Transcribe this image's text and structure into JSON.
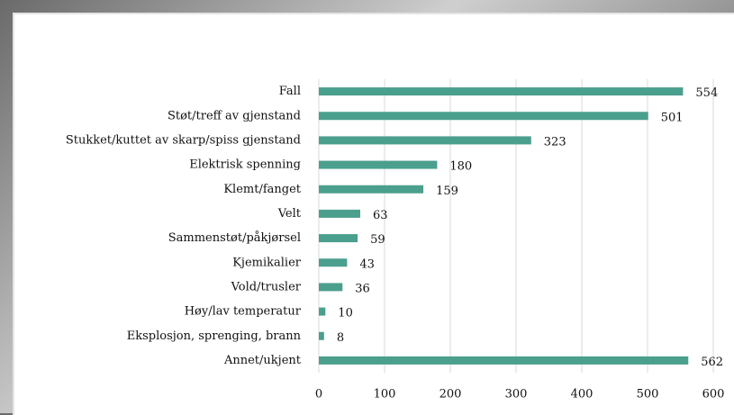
{
  "chart_data": {
    "type": "hbar",
    "categories": [
      "Fall",
      "Støt/treff av gjenstand",
      "Stukket/kuttet av skarp/spiss gjenstand",
      "Elektrisk spenning",
      "Klemt/fanget",
      "Velt",
      "Sammenstøt/påkjørsel",
      "Kjemikalier",
      "Vold/trusler",
      "Høy/lav temperatur",
      "Eksplosjon, sprenging, brann",
      "Annet/ukjent"
    ],
    "values": [
      554,
      501,
      323,
      180,
      159,
      63,
      59,
      43,
      36,
      10,
      8,
      562
    ],
    "color": "#4b9f8d",
    "xlim": [
      0,
      600
    ],
    "xticks": [
      0,
      100,
      200,
      300,
      400,
      500,
      600
    ],
    "grid": true
  }
}
